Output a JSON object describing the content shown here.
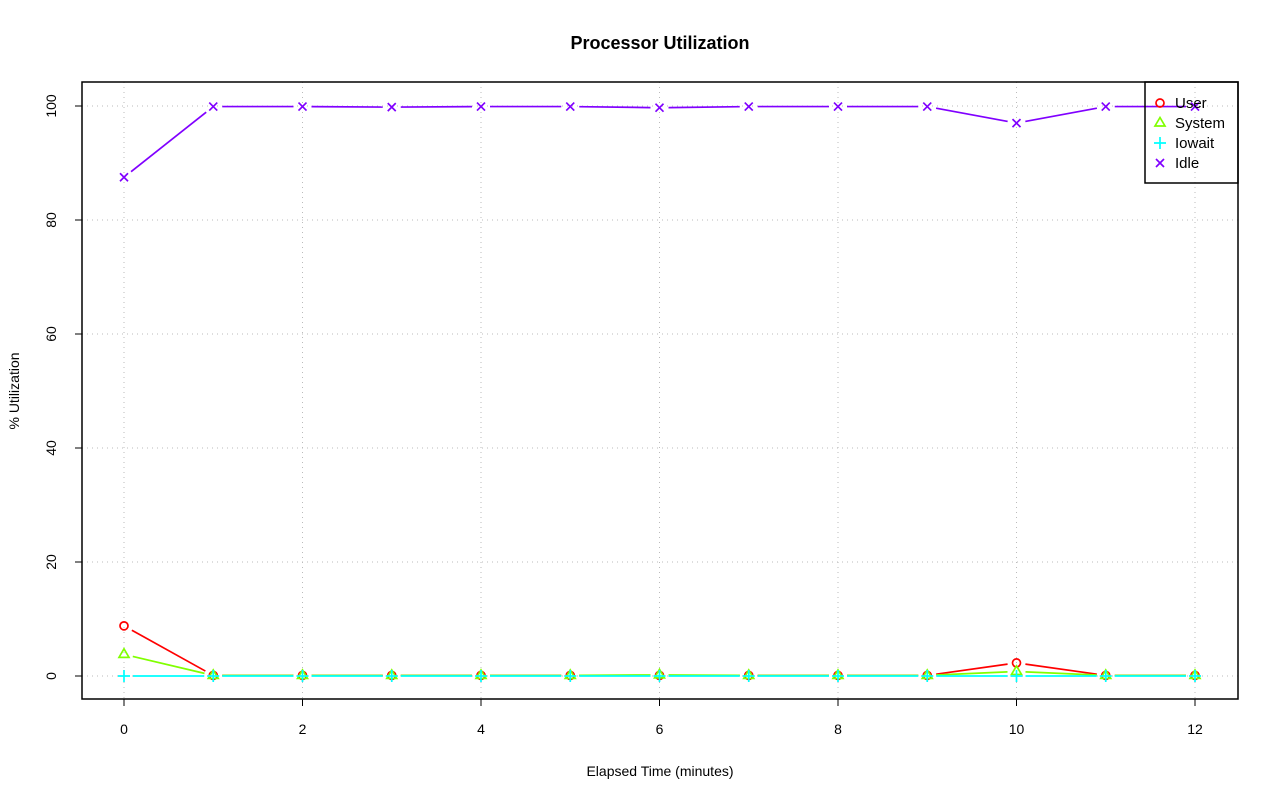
{
  "chart_data": {
    "type": "line",
    "title": "Processor Utilization",
    "xlabel": "Elapsed Time (minutes)",
    "ylabel": "% Utilization",
    "xlim": [
      -0.5,
      12.5
    ],
    "ylim": [
      -4,
      104
    ],
    "x_ticks": [
      0,
      2,
      4,
      6,
      8,
      10,
      12
    ],
    "y_ticks": [
      0,
      20,
      40,
      60,
      80,
      100
    ],
    "grid": true,
    "legend_position": "top-right",
    "x": [
      0,
      1,
      2,
      3,
      4,
      5,
      6,
      7,
      8,
      9,
      10,
      11,
      12
    ],
    "series": [
      {
        "name": "User",
        "color": "#ff0000",
        "marker": "circle",
        "values": [
          8.8,
          0.1,
          0.1,
          0.1,
          0.1,
          0.1,
          0.1,
          0.1,
          0.1,
          0.1,
          2.3,
          0.1,
          0.1
        ]
      },
      {
        "name": "System",
        "color": "#80ff00",
        "marker": "triangle",
        "values": [
          3.8,
          0.1,
          0.1,
          0.1,
          0.1,
          0.1,
          0.2,
          0.1,
          0.1,
          0.1,
          0.8,
          0.1,
          0.1
        ]
      },
      {
        "name": "Iowait",
        "color": "#00ffff",
        "marker": "plus",
        "values": [
          0,
          0,
          0,
          0,
          0,
          0,
          0,
          0,
          0,
          0,
          0,
          0,
          0
        ]
      },
      {
        "name": "Idle",
        "color": "#8000ff",
        "marker": "cross",
        "values": [
          87.5,
          99.9,
          99.9,
          99.8,
          99.9,
          99.9,
          99.7,
          99.9,
          99.9,
          99.9,
          97.0,
          99.9,
          99.9
        ]
      }
    ]
  }
}
